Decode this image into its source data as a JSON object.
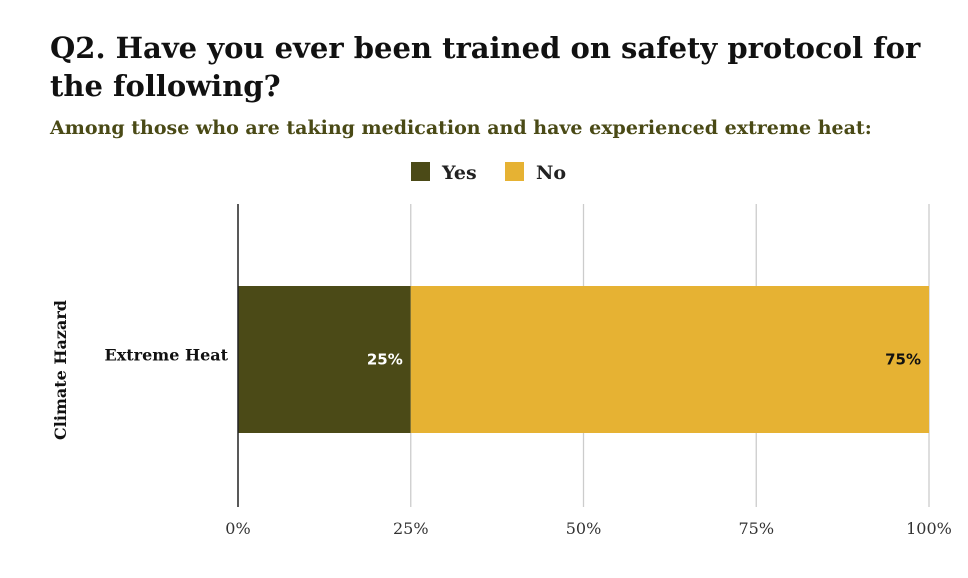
{
  "title_line1": "Q2. Have you ever been trained on safety protocol for",
  "title_line2": "the following?",
  "subtitle": "Among those who are taking medication and have experienced extreme heat:",
  "colors": {
    "subtitle": "#4a4a16",
    "yes": "#4b4a17",
    "no": "#e6b233",
    "grid": "#cccccc",
    "axis": "#222222",
    "label_on_dark": "#ffffff",
    "label_on_light": "#111111"
  },
  "chart_data": {
    "type": "bar",
    "orientation": "horizontal",
    "stacked": true,
    "categories": [
      "Extreme Heat"
    ],
    "series": [
      {
        "name": "Yes",
        "values": [
          25
        ],
        "labels": [
          "25%"
        ]
      },
      {
        "name": "No",
        "values": [
          75
        ],
        "labels": [
          "75%"
        ]
      }
    ],
    "ylabel": "Climate Hazard",
    "xlabel": "",
    "xlim": [
      0,
      100
    ],
    "xticks": [
      0,
      25,
      50,
      75,
      100
    ],
    "xtick_labels": [
      "0%",
      "25%",
      "50%",
      "75%",
      "100%"
    ],
    "grid": true,
    "legend_position": "top-center"
  }
}
